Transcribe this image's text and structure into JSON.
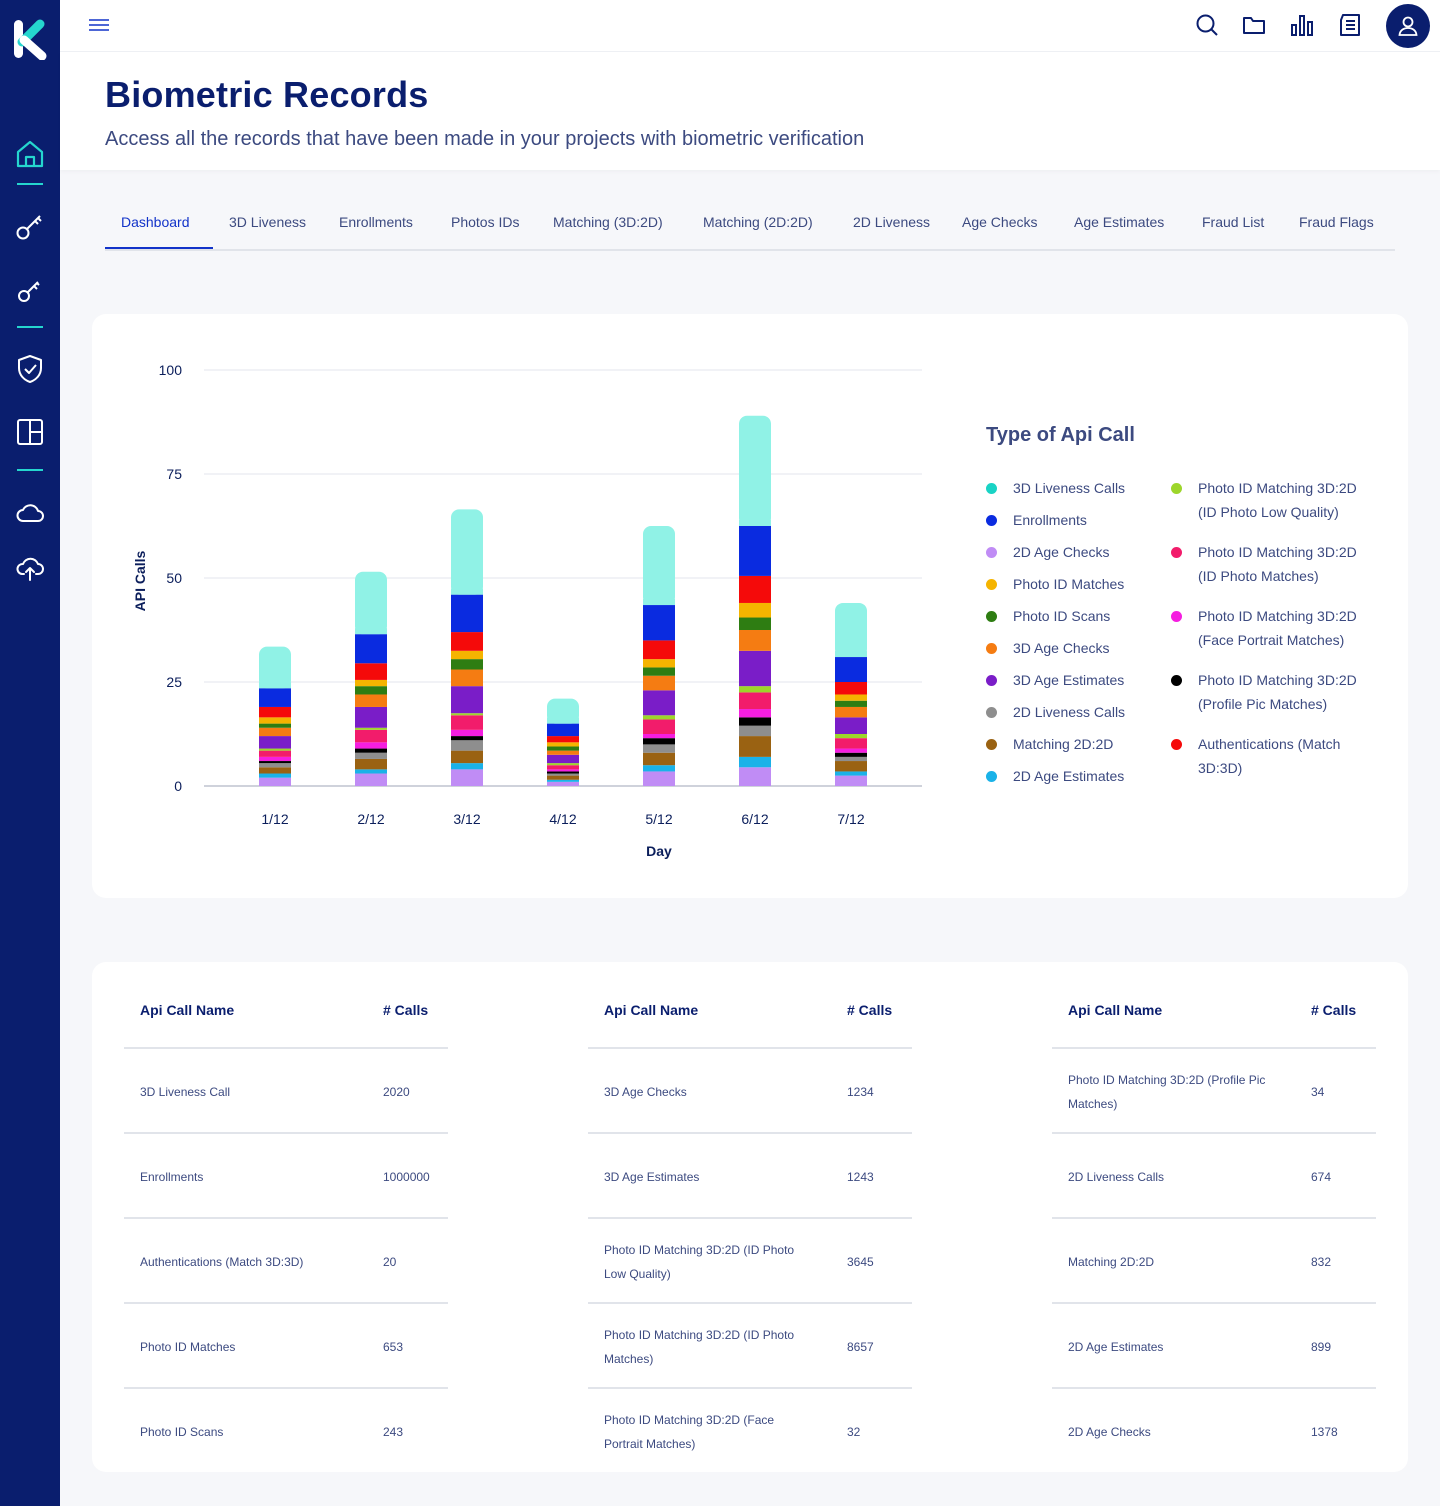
{
  "header": {
    "title": "Biometric Records",
    "subtitle": "Access all the records that have been made in your projects with biometric verification"
  },
  "icons": {
    "logo": "k-logo",
    "sidebar": [
      "home-icon",
      "key-icon",
      "key-icon",
      "shield-check-icon",
      "layout-icon",
      "cloud-icon",
      "cloud-upload-icon"
    ],
    "topbar": [
      "menu-icon",
      "search-icon",
      "folder-icon",
      "bar-chart-icon",
      "document-icon",
      "user-icon"
    ]
  },
  "tabs": [
    {
      "label": "Dashboard",
      "active": true
    },
    {
      "label": "3D Liveness"
    },
    {
      "label": "Enrollments"
    },
    {
      "label": "Photos IDs"
    },
    {
      "label": "Matching (3D:2D)"
    },
    {
      "label": "Matching (2D:2D)"
    },
    {
      "label": "2D Liveness"
    },
    {
      "label": "Age Checks"
    },
    {
      "label": "Age Estimates"
    },
    {
      "label": "Fraud List"
    },
    {
      "label": "Fraud Flags"
    }
  ],
  "chart_data": {
    "type": "bar",
    "stacked": true,
    "categories": [
      "1/12",
      "2/12",
      "3/12",
      "4/12",
      "5/12",
      "6/12",
      "7/12"
    ],
    "xlabel": "Day",
    "ylabel": "API Calls",
    "ylim": [
      0,
      100
    ],
    "yticks": [
      0,
      25,
      50,
      75,
      100
    ],
    "grid": true,
    "legend_title": "Type of Api Call",
    "legend_position": "right",
    "legend": [
      {
        "name": "3D Liveness Calls",
        "color": "#19D3C5"
      },
      {
        "name": "Enrollments",
        "color": "#0A2BE0"
      },
      {
        "name": "2D Age Checks",
        "color": "#C08CF5"
      },
      {
        "name": "Photo ID Matches",
        "color": "#F5B400"
      },
      {
        "name": "Photo ID Scans",
        "color": "#2E7D12"
      },
      {
        "name": "3D Age Checks",
        "color": "#F57C12"
      },
      {
        "name": "3D Age Estimates",
        "color": "#7A1DC8"
      },
      {
        "name": "2D Liveness Calls",
        "color": "#8E8E8E"
      },
      {
        "name": "Matching 2D:2D",
        "color": "#9A6212"
      },
      {
        "name": "2D Age Estimates",
        "color": "#1AB2E8"
      },
      {
        "name": "Photo ID Matching 3D:2D (ID Photo Low Quality)",
        "color": "#9DD62B"
      },
      {
        "name": "Photo ID Matching 3D:2D (ID Photo Matches)",
        "color": "#F21C6B"
      },
      {
        "name": "Photo ID Matching 3D:2D (Face Portrait Matches)",
        "color": "#F51EE0"
      },
      {
        "name": "Photo ID Matching 3D:2D (Profile Pic Matches)",
        "color": "#000000"
      },
      {
        "name": "Authentications (Match 3D:3D)",
        "color": "#F50A0A"
      }
    ],
    "stack_order": [
      "2D Age Checks",
      "2D Age Estimates",
      "Matching 2D:2D",
      "2D Liveness Calls",
      "Photo ID Matching 3D:2D (Profile Pic Matches)",
      "Photo ID Matching 3D:2D (Face Portrait Matches)",
      "Photo ID Matching 3D:2D (ID Photo Matches)",
      "Photo ID Matching 3D:2D (ID Photo Low Quality)",
      "3D Age Estimates",
      "3D Age Checks",
      "Photo ID Scans",
      "Photo ID Matches",
      "Authentications (Match 3D:3D)",
      "Enrollments",
      "3D Liveness Calls"
    ],
    "series": [
      {
        "name": "2D Age Checks",
        "values": [
          2,
          3,
          4,
          1,
          3.5,
          4.5,
          2.5
        ]
      },
      {
        "name": "2D Age Estimates",
        "values": [
          1,
          1,
          1.5,
          0.5,
          1.5,
          2.5,
          1
        ]
      },
      {
        "name": "Matching 2D:2D",
        "values": [
          1.5,
          2.5,
          3,
          1,
          3,
          5,
          2.5
        ]
      },
      {
        "name": "2D Liveness Calls",
        "values": [
          1,
          1.5,
          2.5,
          0.5,
          2,
          2.5,
          1
        ]
      },
      {
        "name": "Photo ID Matching 3D:2D (Profile Pic Matches)",
        "values": [
          0.5,
          1,
          1,
          0.5,
          1.5,
          2,
          1
        ]
      },
      {
        "name": "Photo ID Matching 3D:2D (Face Portrait Matches)",
        "values": [
          1,
          1.5,
          1.5,
          0.5,
          1,
          2,
          1
        ]
      },
      {
        "name": "Photo ID Matching 3D:2D (ID Photo Matches)",
        "values": [
          1.5,
          3,
          3.5,
          1,
          3.5,
          4,
          2.5
        ]
      },
      {
        "name": "Photo ID Matching 3D:2D (ID Photo Low Quality)",
        "values": [
          0.5,
          0.5,
          0.5,
          0.5,
          1,
          1.5,
          1
        ]
      },
      {
        "name": "3D Age Estimates",
        "values": [
          3,
          5,
          6.5,
          2,
          6,
          8.5,
          4
        ]
      },
      {
        "name": "3D Age Checks",
        "values": [
          2,
          3,
          4,
          1,
          3.5,
          5,
          2.5
        ]
      },
      {
        "name": "Photo ID Scans",
        "values": [
          1,
          2,
          2.5,
          1,
          2,
          3,
          1.5
        ]
      },
      {
        "name": "Photo ID Matches",
        "values": [
          1.5,
          1.5,
          2,
          1,
          2,
          3.5,
          1.5
        ]
      },
      {
        "name": "Authentications (Match 3D:3D)",
        "values": [
          2.5,
          4,
          4.5,
          1.5,
          4.5,
          6.5,
          3
        ]
      },
      {
        "name": "Enrollments",
        "values": [
          4.5,
          7,
          9,
          3,
          8.5,
          12,
          6
        ]
      },
      {
        "name": "3D Liveness Calls",
        "values": [
          10,
          15,
          20.5,
          6,
          19,
          26.5,
          13
        ]
      }
    ]
  },
  "table": {
    "col_name": "Api Call Name",
    "col_calls": "# Calls",
    "columns": [
      [
        {
          "name": "3D Liveness Call",
          "calls": "2020"
        },
        {
          "name": "Enrollments",
          "calls": "1000000"
        },
        {
          "name": "Authentications (Match 3D:3D)",
          "calls": "20"
        },
        {
          "name": "Photo ID Matches",
          "calls": "653"
        },
        {
          "name": "Photo ID Scans",
          "calls": "243"
        }
      ],
      [
        {
          "name": "3D Age Checks",
          "calls": "1234"
        },
        {
          "name": "3D Age Estimates",
          "calls": "1243"
        },
        {
          "name": "Photo ID Matching 3D:2D (ID Photo Low Quality)",
          "calls": "3645"
        },
        {
          "name": "Photo ID Matching 3D:2D (ID Photo Matches)",
          "calls": "8657"
        },
        {
          "name": "Photo ID Matching 3D:2D (Face Portrait Matches)",
          "calls": "32"
        }
      ],
      [
        {
          "name": "Photo ID Matching 3D:2D (Profile Pic Matches)",
          "calls": "34"
        },
        {
          "name": "2D Liveness Calls",
          "calls": "674"
        },
        {
          "name": "Matching 2D:2D",
          "calls": "832"
        },
        {
          "name": "2D Age Estimates",
          "calls": "899"
        },
        {
          "name": "2D Age Checks",
          "calls": "1378"
        }
      ]
    ]
  }
}
